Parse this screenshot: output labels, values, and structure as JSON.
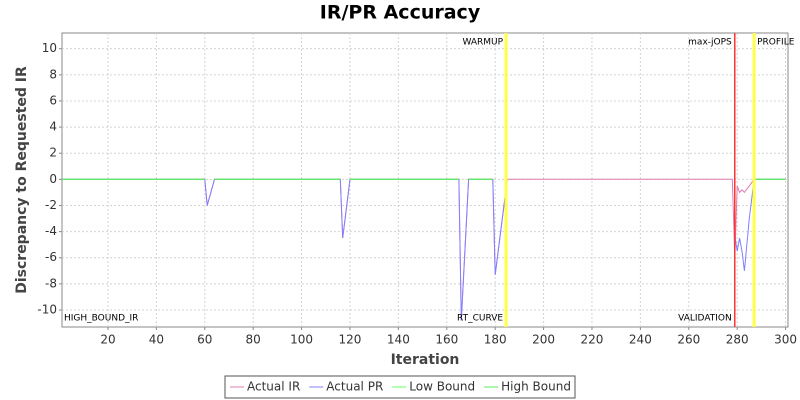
{
  "chart_data": {
    "type": "line",
    "title": "IR/PR Accuracy",
    "x_label": "Iteration",
    "y_label": "Discrepancy to Requested IR",
    "x": [
      1,
      60,
      61,
      64,
      116,
      117,
      120,
      165,
      166,
      169,
      179,
      180,
      185,
      278,
      279,
      280,
      281,
      282,
      283,
      285,
      287,
      300
    ],
    "series": [
      {
        "name": "Actual IR",
        "color": "#e07cb0",
        "values": [
          0,
          0,
          -2,
          0,
          0,
          -4.5,
          0,
          0,
          -10.8,
          0,
          0,
          -7.3,
          0,
          0,
          -6,
          -0.5,
          -1,
          -0.8,
          -1,
          -0.5,
          0,
          0
        ]
      },
      {
        "name": "Actual PR",
        "color": "#8080ff",
        "values": [
          0,
          0,
          -2,
          0,
          0,
          -4.5,
          0,
          0,
          -10.8,
          0,
          0,
          -7.3,
          0,
          null,
          -4.3,
          -5.5,
          -4.5,
          -5.5,
          -7,
          -3,
          0,
          0
        ]
      },
      {
        "name": "Low Bound",
        "color": "#66ff66",
        "values": [
          0,
          0,
          null,
          0,
          0,
          null,
          0,
          0,
          null,
          0,
          0,
          null,
          null,
          null,
          null,
          null,
          null,
          null,
          null,
          null,
          0,
          0
        ]
      },
      {
        "name": "High Bound",
        "color": "#55ee55",
        "values": [
          0,
          0,
          null,
          0,
          0,
          null,
          0,
          0,
          null,
          0,
          0,
          null,
          null,
          null,
          null,
          null,
          null,
          null,
          null,
          null,
          0,
          0
        ]
      }
    ],
    "markers": [
      {
        "x": 184.5,
        "color": "#ffff44",
        "label_top": "WARMUP",
        "label_bottom": "RT_CURVE"
      },
      {
        "x": 279,
        "color": "#ff3333",
        "label_top": "max-jOPS",
        "label_bottom": "VALIDATION"
      },
      {
        "x": 287,
        "color": "#ffff44",
        "label_top": "PROFILE"
      }
    ],
    "annotation": "HIGH_BOUND_IR",
    "xlim": [
      1,
      301
    ],
    "ylim": [
      -11.3,
      11.2
    ],
    "xticks": [
      20,
      40,
      60,
      80,
      100,
      120,
      140,
      160,
      180,
      200,
      220,
      240,
      260,
      280,
      300
    ],
    "yticks": [
      -10,
      -8,
      -6,
      -4,
      -2,
      0,
      2,
      4,
      6,
      8,
      10
    ],
    "grid": true,
    "legend": "bottom"
  }
}
